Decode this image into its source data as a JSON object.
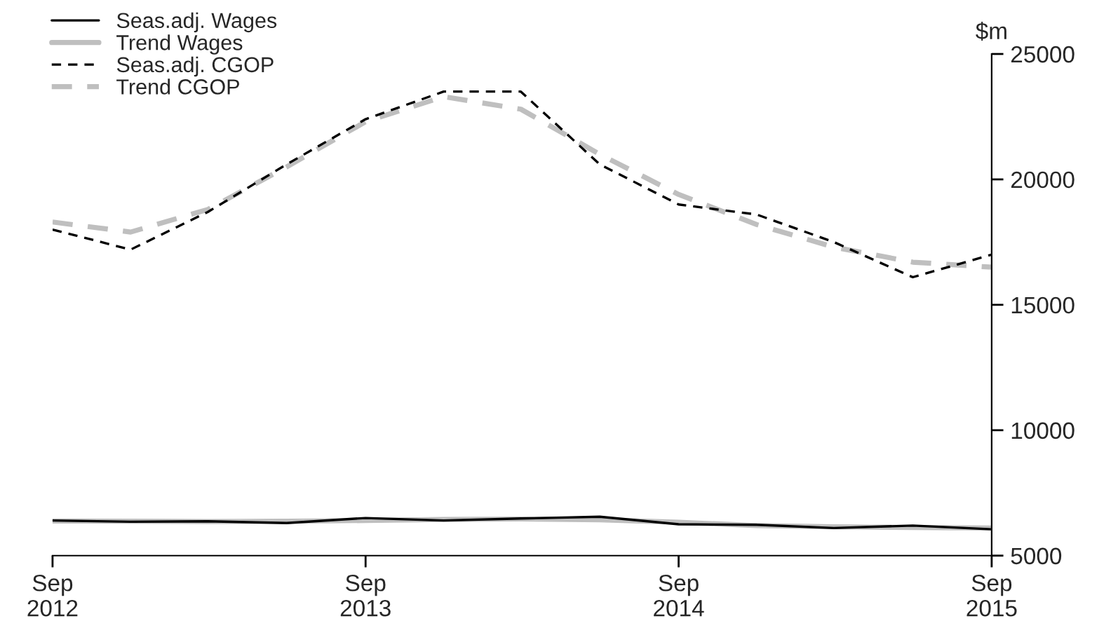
{
  "chart_data": {
    "type": "line",
    "ylabel": "$m",
    "x": [
      "2012-09",
      "2012-12",
      "2013-03",
      "2013-06",
      "2013-09",
      "2013-12",
      "2014-03",
      "2014-06",
      "2014-09",
      "2014-12",
      "2015-03",
      "2015-06",
      "2015-09"
    ],
    "series": [
      {
        "name": "Seas.adj. Wages",
        "color": "#000000",
        "line_style": "solid",
        "values": [
          6400,
          6350,
          6370,
          6300,
          6500,
          6400,
          6480,
          6550,
          6250,
          6230,
          6100,
          6200,
          6050
        ]
      },
      {
        "name": "Trend Wages",
        "color": "#bfbfbf",
        "line_style": "solid",
        "values": [
          6380,
          6370,
          6360,
          6370,
          6400,
          6440,
          6460,
          6430,
          6330,
          6200,
          6150,
          6120,
          6100
        ]
      },
      {
        "name": "Seas.adj. CGOP",
        "color": "#000000",
        "line_style": "dashed",
        "values": [
          18000,
          17200,
          18700,
          20600,
          22400,
          23500,
          23500,
          20600,
          19000,
          18600,
          17500,
          16100,
          17000
        ]
      },
      {
        "name": "Trend CGOP",
        "color": "#bfbfbf",
        "line_style": "dashed",
        "values": [
          18300,
          17900,
          18800,
          20500,
          22300,
          23300,
          22800,
          21000,
          19400,
          18200,
          17300,
          16700,
          16500
        ]
      }
    ],
    "xlim": [
      "2012-09",
      "2015-09"
    ],
    "xticks": [
      {
        "value": "2012-09",
        "label": "Sep\n2012"
      },
      {
        "value": "2013-09",
        "label": "Sep\n2013"
      },
      {
        "value": "2014-09",
        "label": "Sep\n2014"
      },
      {
        "value": "2015-09",
        "label": "Sep\n2015"
      }
    ],
    "ylim": [
      5000,
      25000
    ],
    "yticks": [
      5000,
      10000,
      15000,
      20000,
      25000
    ],
    "grid": false,
    "legend": "top left"
  }
}
